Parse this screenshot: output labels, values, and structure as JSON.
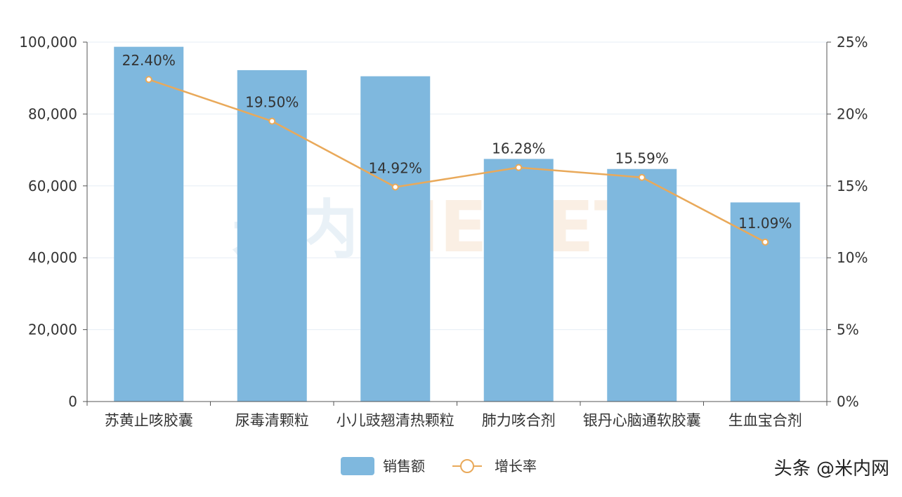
{
  "chart_data": {
    "type": "bar",
    "categories": [
      "苏黄止咳胶囊",
      "尿毒清颗粒",
      "小儿豉翘清热颗粒",
      "肺力咳合剂",
      "银丹心脑通软胶囊",
      "生血宝合剂"
    ],
    "series": [
      {
        "name": "销售额",
        "type": "bar",
        "axis": "left",
        "color": "#7fb8de",
        "values": [
          98700,
          92200,
          90500,
          67500,
          64700,
          55400
        ]
      },
      {
        "name": "增长率",
        "type": "line",
        "axis": "right",
        "color": "#e9a95a",
        "values": [
          22.4,
          19.5,
          14.92,
          16.28,
          15.59,
          11.09
        ],
        "labels": [
          "22.40%",
          "19.50%",
          "14.92%",
          "16.28%",
          "15.59%",
          "11.09%"
        ]
      }
    ],
    "ylim_left": [
      0,
      100000
    ],
    "ylim_right": [
      0,
      25
    ],
    "yticks_left": [
      "0",
      "20,000",
      "40,000",
      "60,000",
      "80,000",
      "100,000"
    ],
    "yticks_right": [
      "0%",
      "5%",
      "10%",
      "15%",
      "20%",
      "25%"
    ],
    "grid": true,
    "legend_position": "bottom-center"
  },
  "watermark": {
    "cn": "米内",
    "en": "MENET"
  },
  "corner_text": "头条 @米内网"
}
